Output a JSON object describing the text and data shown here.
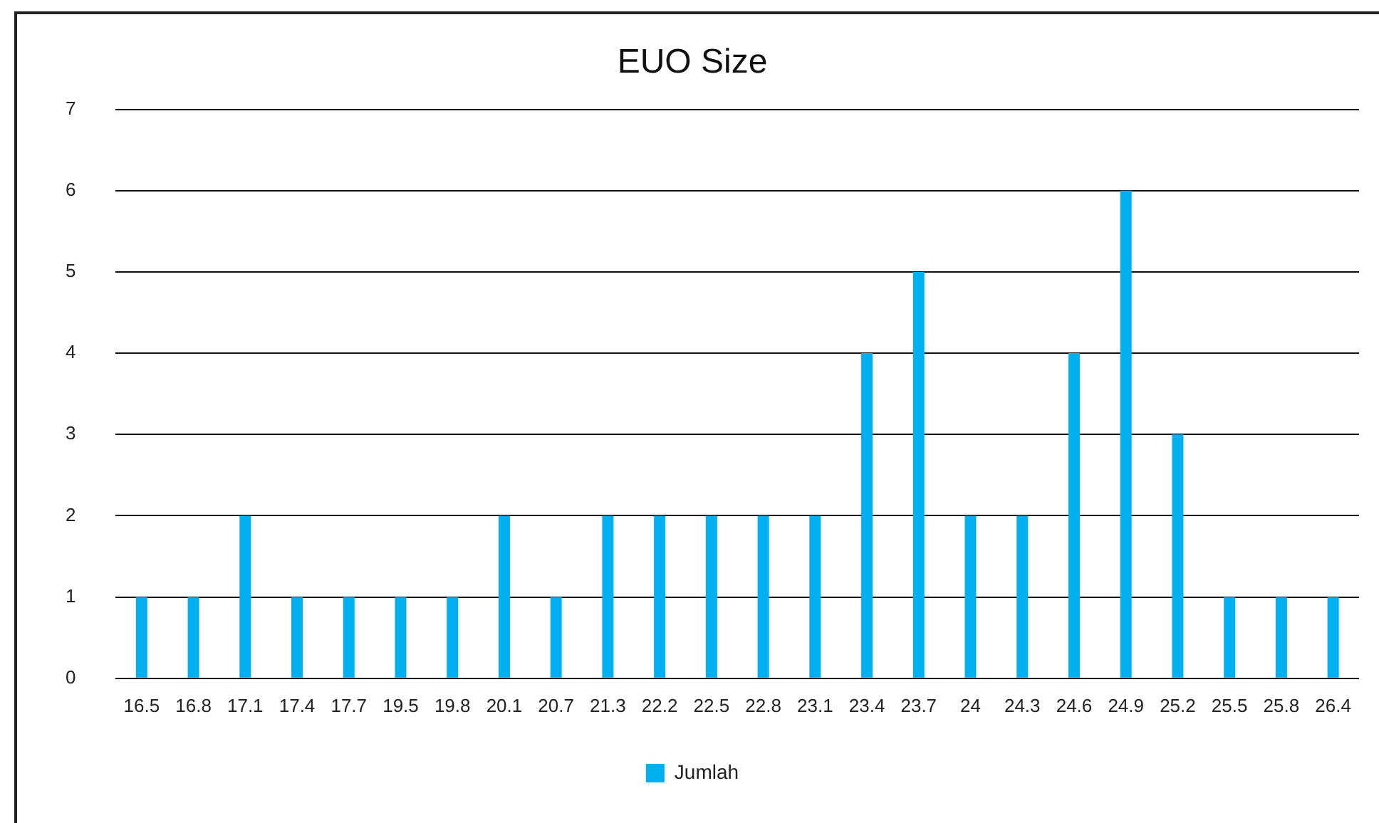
{
  "chart_data": {
    "type": "bar",
    "title": "EUO Size",
    "categories": [
      "16.5",
      "16.8",
      "17.1",
      "17.4",
      "17.7",
      "19.5",
      "19.8",
      "20.1",
      "20.7",
      "21.3",
      "22.2",
      "22.5",
      "22.8",
      "23.1",
      "23.4",
      "23.7",
      "24",
      "24.3",
      "24.6",
      "24.9",
      "25.2",
      "25.5",
      "25.8",
      "26.4"
    ],
    "series": [
      {
        "name": "Jumlah",
        "color": "#00b0f0",
        "values": [
          1,
          1,
          2,
          1,
          1,
          1,
          1,
          2,
          1,
          2,
          2,
          2,
          2,
          2,
          4,
          5,
          2,
          2,
          4,
          6,
          3,
          1,
          1,
          1
        ]
      }
    ],
    "ylim": [
      0,
      7
    ],
    "yticks": [
      0,
      1,
      2,
      3,
      4,
      5,
      6,
      7
    ],
    "grid": "y",
    "legend": "bottom"
  }
}
